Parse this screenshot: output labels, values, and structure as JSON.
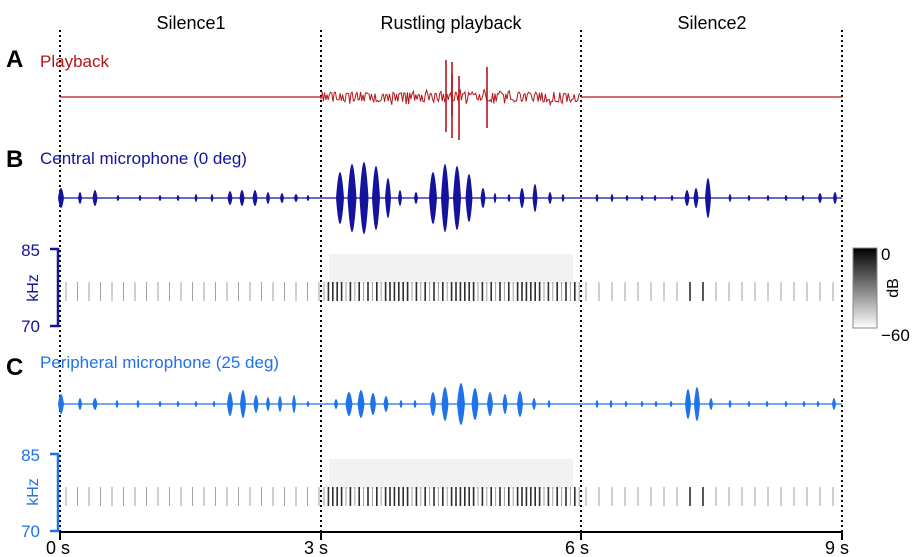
{
  "segments": [
    {
      "label": "Silence1"
    },
    {
      "label": "Rustling playback"
    },
    {
      "label": "Silence2"
    }
  ],
  "time_ticks": [
    "0 s",
    "3 s",
    "6 s",
    "9 s"
  ],
  "panels": {
    "a": {
      "letter": "A",
      "title": "Playback",
      "color": "#b2161b"
    },
    "b": {
      "letter": "B",
      "title": "Central microphone (0 deg)",
      "color": "#13139e",
      "freq_top": "85",
      "freq_bottom": "70",
      "freq_unit": "kHz"
    },
    "c": {
      "letter": "C",
      "title": "Peripheral microphone (25 deg)",
      "color": "#1f73ea",
      "freq_top": "85",
      "freq_bottom": "70",
      "freq_unit": "kHz"
    }
  },
  "colorbar": {
    "top": "0",
    "bottom": "−60",
    "unit": "dB"
  },
  "colors": {
    "divider": "#000000",
    "axis": "#000000",
    "spectrogram": "#555555"
  }
}
